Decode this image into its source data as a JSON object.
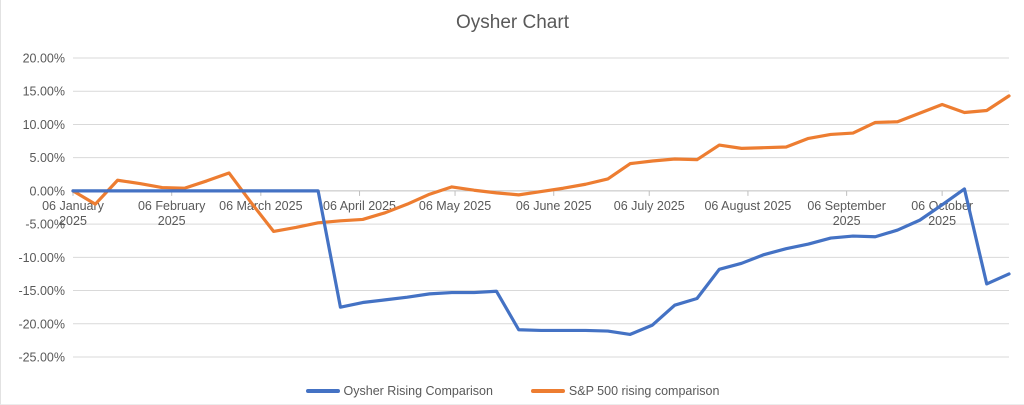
{
  "chart_data": {
    "type": "line",
    "title": "Oysher Chart",
    "xlabel": "",
    "ylabel": "",
    "ylim": [
      -25,
      20
    ],
    "xlim_days": [
      0,
      294
    ],
    "grid": true,
    "legend_position": "bottom",
    "background": "#FFFFFF",
    "text_color": "#595959",
    "gridline_color": "#D9D9D9",
    "axis_color": "#BFBFBF",
    "dates": [
      "2025-01-06",
      "2025-01-13",
      "2025-01-20",
      "2025-01-27",
      "2025-02-03",
      "2025-02-10",
      "2025-02-17",
      "2025-02-24",
      "2025-03-03",
      "2025-03-10",
      "2025-03-17",
      "2025-03-24",
      "2025-03-31",
      "2025-04-07",
      "2025-04-14",
      "2025-04-21",
      "2025-04-28",
      "2025-05-05",
      "2025-05-12",
      "2025-05-19",
      "2025-05-26",
      "2025-06-02",
      "2025-06-09",
      "2025-06-16",
      "2025-06-23",
      "2025-06-30",
      "2025-07-07",
      "2025-07-14",
      "2025-07-21",
      "2025-07-28",
      "2025-08-04",
      "2025-08-11",
      "2025-08-18",
      "2025-08-25",
      "2025-09-01",
      "2025-09-08",
      "2025-09-15",
      "2025-09-22",
      "2025-09-29",
      "2025-10-06",
      "2025-10-13",
      "2025-10-20",
      "2025-10-27"
    ],
    "x_days": [
      0,
      7,
      14,
      21,
      28,
      35,
      42,
      49,
      56,
      63,
      70,
      77,
      84,
      91,
      98,
      105,
      112,
      119,
      126,
      133,
      140,
      147,
      154,
      161,
      168,
      175,
      182,
      189,
      196,
      203,
      210,
      217,
      224,
      231,
      238,
      245,
      252,
      259,
      266,
      273,
      280,
      287,
      294
    ],
    "series": [
      {
        "name": "Oysher Rising Comparison",
        "color": "#4472C4",
        "values": [
          0.0,
          0.0,
          0.0,
          0.0,
          0.0,
          0.0,
          0.0,
          0.0,
          0.0,
          0.0,
          0.0,
          0.0,
          -17.5,
          -16.8,
          -16.4,
          -16.0,
          -15.5,
          -15.3,
          -15.3,
          -15.1,
          -20.9,
          -21.0,
          -21.0,
          -21.0,
          -21.1,
          -21.6,
          -20.2,
          -17.2,
          -16.2,
          -11.8,
          -10.9,
          -9.6,
          -8.7,
          -8.0,
          -7.1,
          -6.8,
          -6.9,
          -5.9,
          -4.4,
          -2.1,
          0.3,
          -14.0,
          -12.5
        ]
      },
      {
        "name": "S&P 500 rising comparison",
        "color": "#ED7D31",
        "values": [
          0.0,
          -2.0,
          1.6,
          1.1,
          0.5,
          0.4,
          1.5,
          2.7,
          -1.8,
          -6.1,
          -5.5,
          -4.8,
          -4.5,
          -4.3,
          -3.3,
          -2.0,
          -0.5,
          0.6,
          0.1,
          -0.3,
          -0.6,
          -0.1,
          0.4,
          1.0,
          1.8,
          4.1,
          4.5,
          4.8,
          4.7,
          6.9,
          6.4,
          6.5,
          6.6,
          7.9,
          8.5,
          8.7,
          10.3,
          10.4,
          11.7,
          13.0,
          11.8,
          12.1,
          14.3
        ]
      }
    ],
    "y_ticks": [
      {
        "value": 20,
        "label": "20.00%"
      },
      {
        "value": 15,
        "label": "15.00%"
      },
      {
        "value": 10,
        "label": "10.00%"
      },
      {
        "value": 5,
        "label": "5.00%"
      },
      {
        "value": 0,
        "label": "0.00%"
      },
      {
        "value": -5,
        "label": "-5.00%"
      },
      {
        "value": -10,
        "label": "-10.00%"
      },
      {
        "value": -15,
        "label": "-15.00%"
      },
      {
        "value": -20,
        "label": "-20.00%"
      },
      {
        "value": -25,
        "label": "-25.00%"
      }
    ],
    "x_ticks": [
      {
        "day": 0,
        "lines": [
          "06 January",
          "2025"
        ]
      },
      {
        "day": 31,
        "lines": [
          "06 February",
          "2025"
        ]
      },
      {
        "day": 59,
        "lines": [
          "06 March 2025"
        ]
      },
      {
        "day": 90,
        "lines": [
          "06 April 2025"
        ]
      },
      {
        "day": 120,
        "lines": [
          "06 May 2025"
        ]
      },
      {
        "day": 151,
        "lines": [
          "06 June 2025"
        ]
      },
      {
        "day": 181,
        "lines": [
          "06 July 2025"
        ]
      },
      {
        "day": 212,
        "lines": [
          "06 August 2025"
        ]
      },
      {
        "day": 243,
        "lines": [
          "06 September",
          "2025"
        ]
      },
      {
        "day": 273,
        "lines": [
          "06 October",
          "2025"
        ]
      }
    ]
  }
}
